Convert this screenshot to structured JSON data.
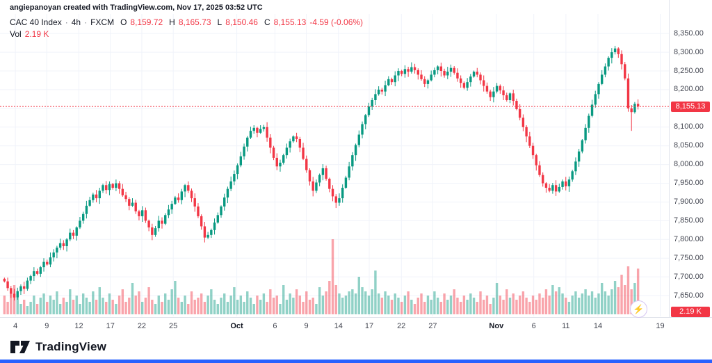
{
  "attribution": "angiepanoyan created with TradingView.com, Nov 17, 2025 03:52 UTC",
  "header": {
    "symbol": "CAC 40 Index",
    "sep": "·",
    "interval": "4h",
    "exchange": "FXCM",
    "o_label": "O",
    "o": "8,159.72",
    "h_label": "H",
    "h": "8,165.73",
    "l_label": "L",
    "l": "8,150.46",
    "c_label": "C",
    "c": "8,155.13",
    "change": "-4.59 (-0.06%)",
    "vol_label": "Vol",
    "vol_value": "2.19 K"
  },
  "price_scale": {
    "last_price_badge": "8,155.13",
    "volume_badge": "2.19 K"
  },
  "widgets": {
    "lightning_glyph": "⚡"
  },
  "footer": {
    "brand": "TradingView"
  },
  "colors": {
    "up": "#089981",
    "down": "#f23645",
    "vol_up": "rgba(8,153,129,0.45)",
    "vol_down": "rgba(242,54,69,0.45)",
    "grid": "#f0f3fa",
    "badge_bg": "#f23645",
    "brand_blue": "#2962ff"
  },
  "chart_data": {
    "type": "candlestick",
    "title": "CAC 40 Index · 4h · FXCM",
    "symbol": "CAC 40 Index",
    "interval": "4h",
    "exchange": "FXCM",
    "last": {
      "open": 8159.72,
      "high": 8165.73,
      "low": 8150.46,
      "close": 8155.13,
      "change": -4.59,
      "change_pct": -0.06,
      "volume_k": 2.19
    },
    "price_axis": {
      "min": 7600,
      "max": 8380,
      "tick_step": 50,
      "ticks": [
        {
          "label": "8,350.00",
          "price": 8350
        },
        {
          "label": "8,300.00",
          "price": 8300
        },
        {
          "label": "8,250.00",
          "price": 8250
        },
        {
          "label": "8,200.00",
          "price": 8200
        },
        {
          "label": "8,100.00",
          "price": 8100
        },
        {
          "label": "8,050.00",
          "price": 8050
        },
        {
          "label": "8,000.00",
          "price": 8000
        },
        {
          "label": "7,950.00",
          "price": 7950
        },
        {
          "label": "7,900.00",
          "price": 7900
        },
        {
          "label": "7,850.00",
          "price": 7850
        },
        {
          "label": "7,800.00",
          "price": 7800
        },
        {
          "label": "7,750.00",
          "price": 7750
        },
        {
          "label": "7,700.00",
          "price": 7700
        },
        {
          "label": "7,650.00",
          "price": 7650
        }
      ]
    },
    "time_axis": {
      "ticks": [
        {
          "label": "4",
          "pos": 0.023
        },
        {
          "label": "9",
          "pos": 0.07
        },
        {
          "label": "12",
          "pos": 0.118
        },
        {
          "label": "17",
          "pos": 0.165
        },
        {
          "label": "22",
          "pos": 0.212
        },
        {
          "label": "25",
          "pos": 0.259
        },
        {
          "label": "Oct",
          "pos": 0.354,
          "major": true
        },
        {
          "label": "6",
          "pos": 0.411
        },
        {
          "label": "9",
          "pos": 0.458
        },
        {
          "label": "14",
          "pos": 0.506
        },
        {
          "label": "17",
          "pos": 0.552
        },
        {
          "label": "22",
          "pos": 0.6
        },
        {
          "label": "27",
          "pos": 0.647
        },
        {
          "label": "Nov",
          "pos": 0.742,
          "major": true
        },
        {
          "label": "6",
          "pos": 0.798
        },
        {
          "label": "11",
          "pos": 0.846
        },
        {
          "label": "14",
          "pos": 0.894
        },
        {
          "label": "19",
          "pos": 0.987
        }
      ]
    },
    "first_open": 7695,
    "closes": [
      7688,
      7670,
      7655,
      7645,
      7662,
      7675,
      7668,
      7690,
      7702,
      7715,
      7708,
      7726,
      7740,
      7733,
      7752,
      7765,
      7778,
      7790,
      7782,
      7800,
      7818,
      7810,
      7832,
      7850,
      7868,
      7890,
      7905,
      7920,
      7910,
      7930,
      7945,
      7932,
      7948,
      7938,
      7950,
      7935,
      7918,
      7908,
      7890,
      7898,
      7875,
      7862,
      7878,
      7850,
      7832,
      7812,
      7830,
      7850,
      7842,
      7865,
      7880,
      7895,
      7912,
      7905,
      7928,
      7945,
      7930,
      7910,
      7888,
      7862,
      7835,
      7805,
      7812,
      7825,
      7845,
      7865,
      7888,
      7912,
      7935,
      7955,
      7975,
      7998,
      8022,
      8048,
      8072,
      8090,
      8098,
      8085,
      8095,
      8100,
      8072,
      8045,
      8018,
      7995,
      8005,
      8025,
      8045,
      8062,
      8075,
      8068,
      8045,
      8015,
      7985,
      7955,
      7930,
      7952,
      7972,
      7990,
      7962,
      7935,
      7915,
      7898,
      7910,
      7938,
      7965,
      7995,
      8025,
      8052,
      8080,
      8108,
      8132,
      8155,
      8172,
      8188,
      8200,
      8195,
      8212,
      8228,
      8220,
      8238,
      8250,
      8242,
      8255,
      8248,
      8260,
      8252,
      8240,
      8228,
      8215,
      8225,
      8240,
      8252,
      8262,
      8250,
      8238,
      8248,
      8258,
      8245,
      8230,
      8218,
      8205,
      8220,
      8235,
      8248,
      8240,
      8225,
      8210,
      8195,
      8180,
      8195,
      8210,
      8198,
      8185,
      8172,
      8190,
      8170,
      8148,
      8125,
      8100,
      8075,
      8050,
      8025,
      7998,
      7972,
      7950,
      7938,
      7930,
      7945,
      7928,
      7940,
      7955,
      7942,
      7960,
      7982,
      8008,
      8035,
      8065,
      8098,
      8130,
      8160,
      8188,
      8215,
      8240,
      8262,
      8285,
      8300,
      8310,
      8295,
      8268,
      8230,
      8150,
      8140,
      8162,
      8155
    ],
    "volumes_k": [
      0.9,
      0.6,
      1.1,
      1.4,
      0.8,
      0.5,
      0.7,
      0.4,
      0.6,
      0.9,
      0.5,
      0.8,
      1.0,
      0.6,
      0.9,
      0.7,
      1.1,
      0.5,
      0.8,
      0.6,
      1.2,
      0.7,
      0.9,
      0.5,
      1.0,
      0.8,
      0.6,
      1.1,
      0.7,
      1.3,
      0.8,
      0.6,
      1.0,
      0.7,
      0.5,
      0.9,
      1.2,
      0.6,
      0.8,
      1.5,
      0.9,
      1.1,
      0.6,
      0.8,
      1.3,
      0.7,
      0.5,
      0.9,
      0.6,
      1.0,
      0.7,
      1.2,
      1.6,
      0.8,
      0.6,
      0.9,
      0.5,
      1.1,
      0.7,
      0.8,
      1.0,
      0.6,
      0.9,
      1.2,
      0.7,
      0.5,
      0.8,
      1.0,
      0.6,
      0.9,
      1.3,
      0.7,
      0.9,
      0.6,
      1.1,
      0.8,
      0.5,
      0.9,
      0.7,
      1.0,
      0.6,
      1.2,
      0.8,
      0.9,
      0.5,
      1.4,
      0.7,
      1.0,
      0.8,
      1.2,
      0.9,
      0.6,
      1.1,
      0.7,
      0.8,
      0.5,
      1.3,
      0.9,
      1.1,
      1.6,
      3.6,
      1.4,
      1.0,
      0.8,
      0.9,
      1.1,
      1.2,
      1.0,
      1.8,
      1.3,
      1.1,
      0.9,
      1.2,
      2.1,
      1.0,
      0.8,
      1.1,
      0.9,
      0.7,
      1.0,
      0.8,
      0.6,
      0.9,
      1.1,
      0.7,
      0.5,
      0.8,
      1.0,
      0.6,
      0.9,
      0.7,
      1.1,
      0.8,
      0.6,
      1.0,
      0.7,
      0.9,
      1.2,
      0.8,
      0.6,
      0.9,
      0.7,
      1.0,
      0.8,
      0.6,
      1.1,
      0.7,
      0.9,
      0.5,
      0.8,
      1.5,
      0.9,
      0.7,
      1.2,
      0.8,
      1.0,
      0.7,
      0.9,
      1.1,
      0.8,
      0.6,
      0.9,
      0.7,
      1.0,
      0.8,
      1.2,
      0.9,
      1.4,
      1.1,
      1.3,
      1.0,
      0.8,
      0.6,
      0.9,
      1.1,
      0.8,
      1.0,
      1.2,
      0.9,
      1.1,
      0.8,
      1.0,
      1.5,
      1.1,
      0.9,
      1.2,
      1.6,
      1.3,
      1.9,
      1.4,
      2.3,
      1.2,
      1.5,
      2.19
    ],
    "low_overrides": {
      "3": 7637,
      "101": 7884,
      "191": 8090
    },
    "volume_max_k": 3.6,
    "grid": true,
    "last_price_line": 8155.13
  }
}
